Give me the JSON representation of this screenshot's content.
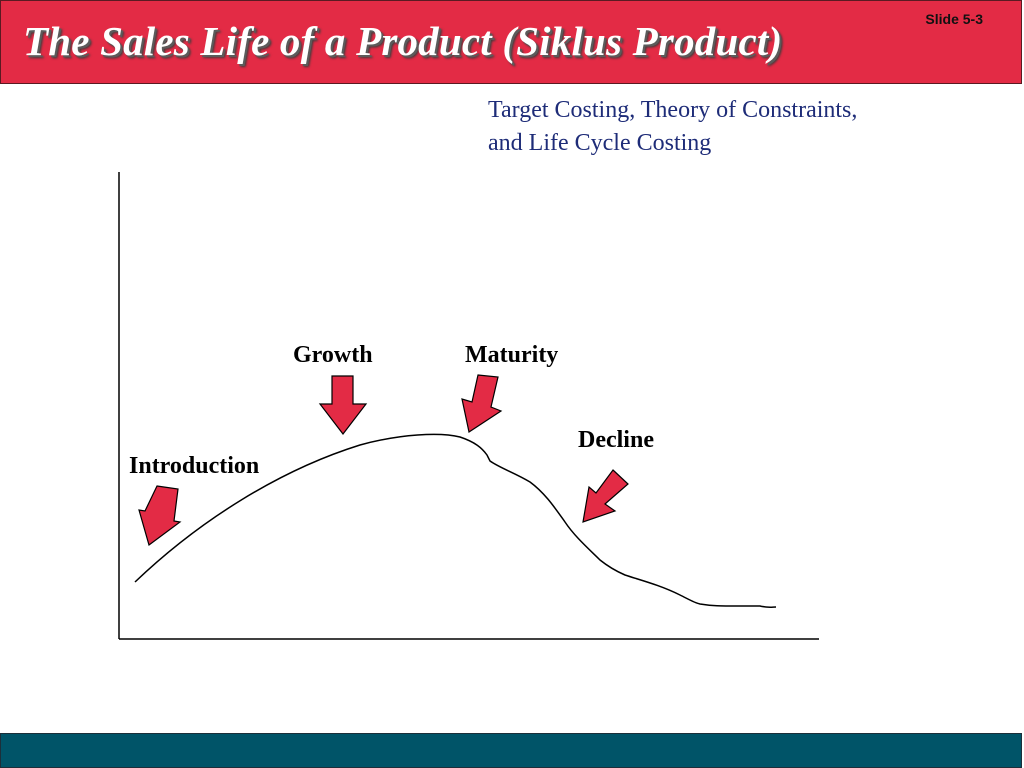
{
  "header": {
    "title": "The Sales Life of a Product (Siklus Product)",
    "slide_number": "Slide 5-3"
  },
  "subtitle": {
    "line1": "Target Costing, Theory of Constraints,",
    "line2": "and Life Cycle Costing"
  },
  "stages": [
    {
      "label": "Introduction"
    },
    {
      "label": "Growth"
    },
    {
      "label": "Maturity"
    },
    {
      "label": "Decline"
    }
  ],
  "colors": {
    "title_bar": "#e32b45",
    "footer_bar": "#005468",
    "arrow_fill": "#e32b45",
    "subtitle_text": "#1e2c78"
  }
}
